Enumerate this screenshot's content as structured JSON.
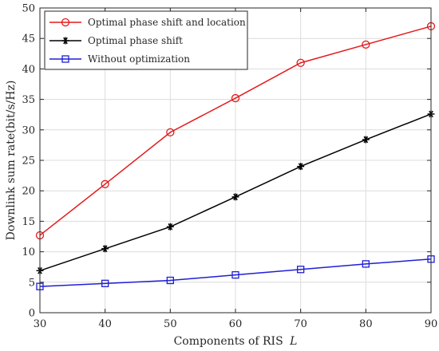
{
  "chart_data": {
    "type": "line",
    "title": "",
    "xlabel": "Components of RIS",
    "xlabel_var": "L",
    "ylabel": "Downlink sum rate(bit/s/Hz)",
    "x": [
      30,
      40,
      50,
      60,
      70,
      80,
      90
    ],
    "xlim": [
      30,
      90
    ],
    "ylim": [
      0,
      50
    ],
    "xticks": [
      "30",
      "40",
      "50",
      "60",
      "70",
      "80",
      "90"
    ],
    "yticks": [
      "0",
      "5",
      "10",
      "15",
      "20",
      "25",
      "30",
      "35",
      "40",
      "45",
      "50"
    ],
    "grid": true,
    "legend_position": "top-left",
    "series": [
      {
        "name": "Optimal phase shift and location",
        "values": [
          12.7,
          21.1,
          29.6,
          35.2,
          41.0,
          44.0,
          47.0
        ],
        "color": "#e41a1c",
        "marker": "circle"
      },
      {
        "name": "Optimal phase shift",
        "values": [
          6.9,
          10.5,
          14.1,
          19.0,
          24.0,
          28.4,
          32.6
        ],
        "color": "#000000",
        "marker": "asterisk"
      },
      {
        "name": "Without optimization",
        "values": [
          4.3,
          4.8,
          5.3,
          6.2,
          7.1,
          8.0,
          8.8
        ],
        "color": "#1f1fd6",
        "marker": "square"
      }
    ]
  }
}
